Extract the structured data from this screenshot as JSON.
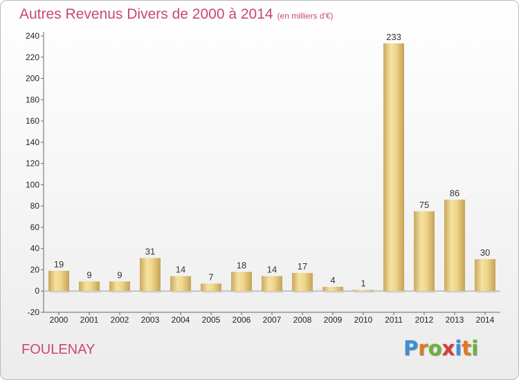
{
  "header": {
    "title": "Autres Revenus Divers de 2000 à 2014",
    "unit": "(en milliers d'€)"
  },
  "footer": {
    "commune": "FOULENAY",
    "logo_letters": [
      "P",
      "r",
      "o",
      "x",
      "i",
      "t",
      "i"
    ]
  },
  "colors": {
    "title": "#c8496b",
    "bar_light": "#f4dc96",
    "bar_dark": "#c9a85c",
    "logo": [
      "#3b8fd6",
      "#e07a1c",
      "#6ab33a",
      "#d93b3b",
      "#3b8fd6",
      "#e07a1c",
      "#6ab33a"
    ]
  },
  "chart_data": {
    "type": "bar",
    "categories": [
      "2000",
      "2001",
      "2002",
      "2003",
      "2004",
      "2005",
      "2006",
      "2007",
      "2008",
      "2009",
      "2010",
      "2011",
      "2012",
      "2013",
      "2014"
    ],
    "values": [
      19,
      9,
      9,
      31,
      14,
      7,
      18,
      14,
      17,
      4,
      1,
      233,
      75,
      86,
      30
    ],
    "title": "Autres Revenus Divers de 2000 à 2014",
    "xlabel": "",
    "ylabel": "",
    "ylim": [
      -20,
      240
    ],
    "yticks": [
      -20,
      0,
      20,
      40,
      60,
      80,
      100,
      120,
      140,
      160,
      180,
      200,
      220,
      240
    ],
    "grid": false,
    "legend": "none"
  }
}
